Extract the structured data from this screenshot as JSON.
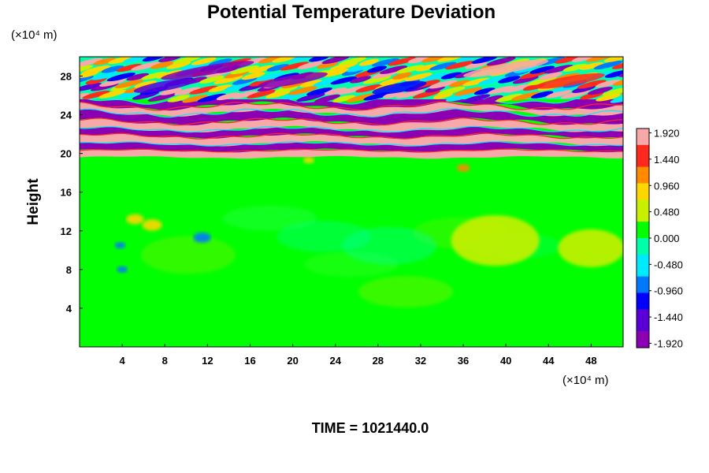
{
  "chart_data": {
    "type": "heatmap",
    "title": "Potential Temperature Deviation",
    "ylabel": "Height",
    "x_unit_label": "(×10⁴ m)",
    "y_unit_label": "(×10⁴ m)",
    "footer": "TIME = 1021440.0",
    "xlim": [
      0,
      51
    ],
    "ylim": [
      0,
      30
    ],
    "x_ticks": [
      "4",
      "8",
      "12",
      "16",
      "20",
      "24",
      "28",
      "32",
      "36",
      "40",
      "44",
      "48"
    ],
    "y_ticks": [
      "4",
      "8",
      "12",
      "16",
      "20",
      "24",
      "28"
    ],
    "colorbar": {
      "range": [
        -2.0,
        2.0
      ],
      "tick_labels": [
        "1.920",
        "1.440",
        "0.960",
        "0.480",
        "0.000",
        "-0.480",
        "-0.960",
        "-1.440",
        "-1.920"
      ],
      "colors": [
        "#f7a9a9",
        "#ff2a1e",
        "#ff8a00",
        "#ffd600",
        "#c8f000",
        "#00ff00",
        "#00ffaa",
        "#00eaff",
        "#0078ff",
        "#0000ff",
        "#5a00d6",
        "#8c00b4"
      ]
    },
    "field_description": [
      {
        "y_range": [
          0,
          19.5
        ],
        "value": 0.0
      },
      {
        "y_range": [
          20,
          25
        ],
        "value": "alternating -1.92 / 1.92 bands"
      },
      {
        "y_range": [
          25,
          30
        ],
        "value": "wave pattern, -1.9 to 1.9"
      }
    ]
  }
}
